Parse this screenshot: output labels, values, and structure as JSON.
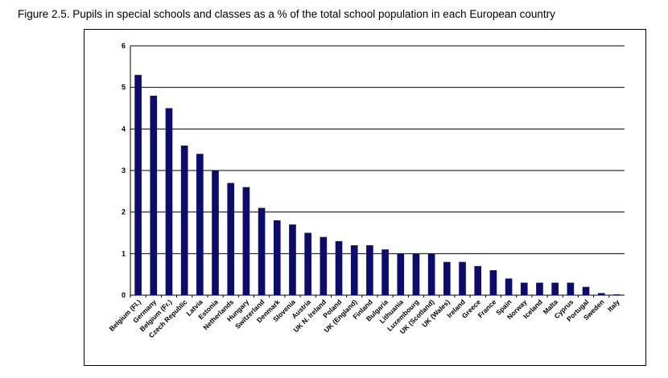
{
  "caption": "Figure 2.5.   Pupils in special schools and classes as a % of the total school population in each European country",
  "colors": {
    "bar": "#0c0c6e",
    "grid": "#000000",
    "background": "#ffffff"
  },
  "chart_data": {
    "type": "bar",
    "title": "",
    "xlabel": "",
    "ylabel": "",
    "ylim": [
      0,
      6
    ],
    "yticks": [
      "0",
      "1",
      "2",
      "3",
      "4",
      "5",
      "6"
    ],
    "grid": "horizontal",
    "legend": "none",
    "categories": [
      "Belgium (Fl.)",
      "Germany",
      "Belgium (Fr.)",
      "Czech Republic",
      "Latvia",
      "Estonia",
      "Netherlands",
      "Hungary",
      "Switzerland",
      "Denmark",
      "Slovenia",
      "Austria",
      "UK N. Ireland",
      "Poland",
      "UK (England)",
      "Finland",
      "Bulgaria",
      "Lithuania",
      "Luxembourg",
      "UK (Scotland)",
      "UK  (Wales)",
      "Ireland",
      "Greece",
      "France",
      "Spain",
      "Norway",
      "Iceland",
      "Malta",
      "Cyprus",
      "Portugal",
      "Sweden",
      "Italy"
    ],
    "values": [
      5.3,
      4.8,
      4.5,
      3.6,
      3.4,
      3.0,
      2.7,
      2.6,
      2.1,
      1.8,
      1.7,
      1.5,
      1.4,
      1.3,
      1.2,
      1.2,
      1.1,
      1.0,
      1.0,
      1.0,
      0.8,
      0.8,
      0.7,
      0.6,
      0.4,
      0.3,
      0.3,
      0.3,
      0.3,
      0.2,
      0.05,
      0.02
    ]
  }
}
